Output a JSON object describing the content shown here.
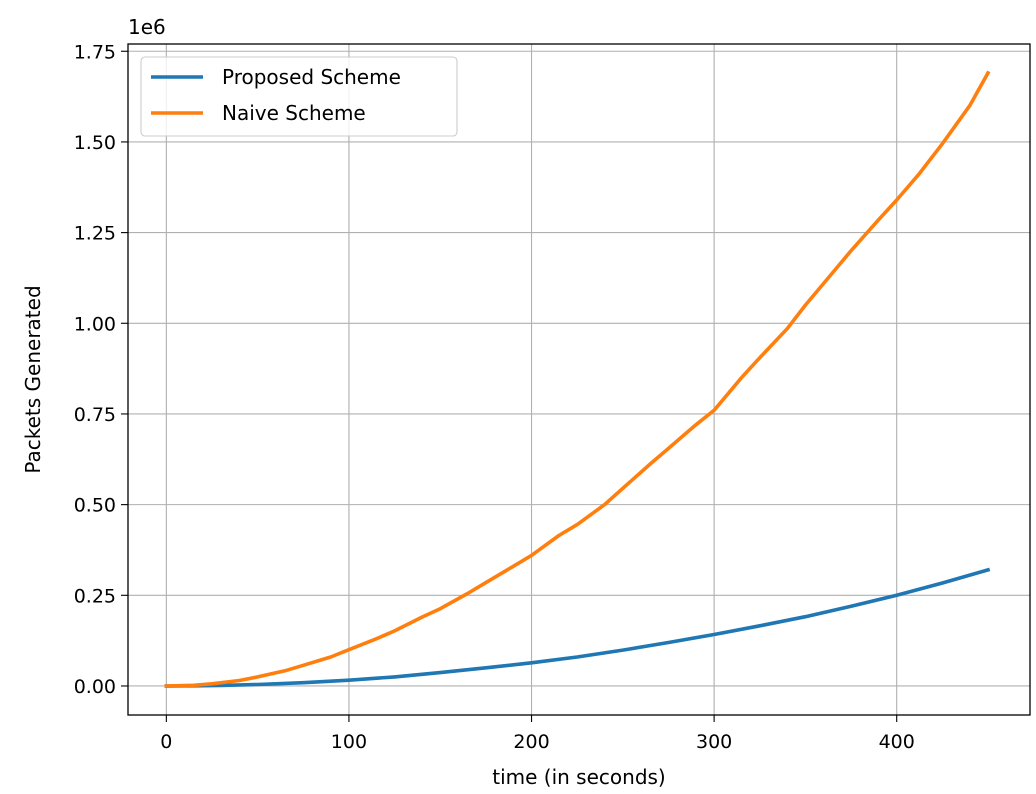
{
  "chart_data": {
    "type": "line",
    "title": "",
    "xlabel": "time (in seconds)",
    "ylabel": "Packets Generated",
    "y_offset_label": "1e6",
    "xlim": [
      -21,
      473
    ],
    "ylim": [
      -0.08,
      1.77
    ],
    "x_ticks": [
      0,
      100,
      200,
      300,
      400
    ],
    "x_tick_labels": [
      "0",
      "100",
      "200",
      "300",
      "400"
    ],
    "y_ticks": [
      0.0,
      0.25,
      0.5,
      0.75,
      1.0,
      1.25,
      1.5,
      1.75
    ],
    "y_tick_labels": [
      "0.00",
      "0.25",
      "0.50",
      "0.75",
      "1.00",
      "1.25",
      "1.50",
      "1.75"
    ],
    "grid": true,
    "legend_position": "top-left",
    "series": [
      {
        "name": "Proposed Scheme",
        "color": "#1f77b4",
        "x": [
          0,
          15,
          30,
          50,
          75,
          100,
          125,
          150,
          175,
          200,
          225,
          250,
          275,
          300,
          325,
          350,
          375,
          400,
          425,
          450
        ],
        "y": [
          0.0,
          0.0005,
          0.0015,
          0.004,
          0.009,
          0.016,
          0.025,
          0.037,
          0.05,
          0.064,
          0.08,
          0.099,
          0.12,
          0.142,
          0.166,
          0.191,
          0.22,
          0.25,
          0.284,
          0.32
        ]
      },
      {
        "name": "Naive Scheme",
        "color": "#ff7f0e",
        "x": [
          0,
          15,
          25,
          40,
          50,
          65,
          75,
          90,
          100,
          115,
          125,
          140,
          150,
          165,
          175,
          190,
          200,
          215,
          225,
          240,
          250,
          265,
          275,
          290,
          300,
          315,
          325,
          340,
          350,
          365,
          375,
          390,
          400,
          412,
          425,
          440,
          450
        ],
        "y": [
          0.0,
          0.002,
          0.006,
          0.015,
          0.025,
          0.042,
          0.057,
          0.08,
          0.1,
          0.13,
          0.152,
          0.19,
          0.213,
          0.255,
          0.285,
          0.33,
          0.36,
          0.415,
          0.445,
          0.5,
          0.545,
          0.612,
          0.655,
          0.72,
          0.76,
          0.85,
          0.905,
          0.985,
          1.05,
          1.14,
          1.2,
          1.285,
          1.34,
          1.41,
          1.495,
          1.6,
          1.69
        ]
      }
    ]
  }
}
